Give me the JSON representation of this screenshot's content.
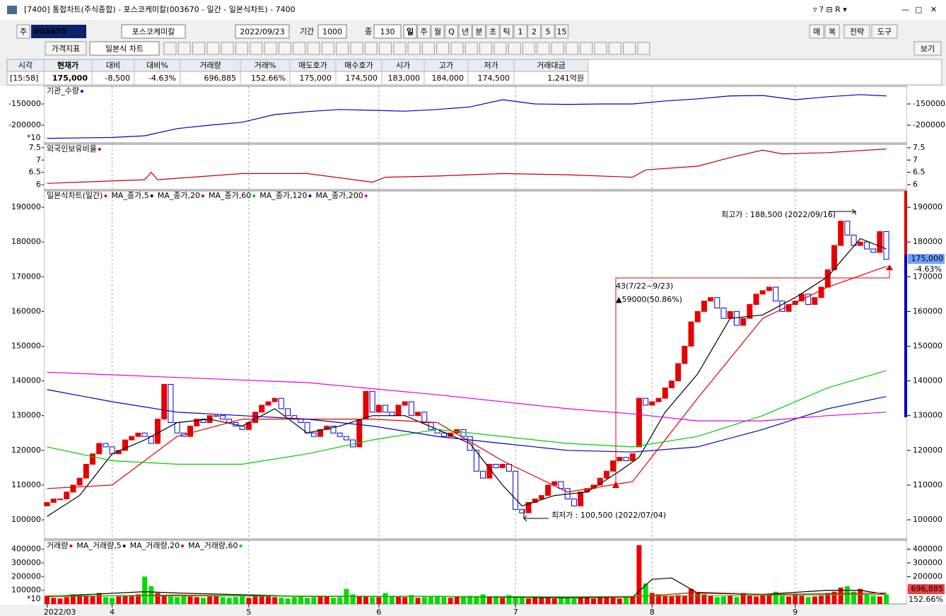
{
  "window": {
    "title": "[7400] 통합차트(주식종합) - 포스코케미칼(003670 - 일간 - 일본식차트) - 7400"
  },
  "toolbar": {
    "market": "주",
    "code": "003670",
    "name": "포스코케미칼",
    "date": "2022/09/23",
    "period_label": "기간",
    "period": "1000",
    "count_label": "종",
    "count": "130",
    "intervals": [
      "일",
      "주",
      "월",
      "Q",
      "년",
      "분",
      "초",
      "틱",
      "1",
      "2",
      "5",
      "15"
    ],
    "right_buttons": [
      "매",
      "복",
      "전략",
      "도구"
    ],
    "indicator": "가격지표",
    "chart_style": "일본식 차트",
    "view": "보기"
  },
  "quote": {
    "headers": [
      "시각",
      "현재가",
      "대비",
      "대비%",
      "거래량",
      "거래%",
      "매도호가",
      "매수호가",
      "시가",
      "고가",
      "저가",
      "거래대금"
    ],
    "values": [
      "[15:58]",
      "175,000",
      "-8,500",
      "-4.63%",
      "696,885",
      "152.66%",
      "175,000",
      "174,500",
      "183,000",
      "184,000",
      "174,500",
      "1,241억원"
    ]
  },
  "chart_data": [
    {
      "type": "line",
      "xlim": [
        -0.5,
        132.2
      ],
      "ylim": [
        -241700,
        -108300
      ],
      "yticks": [
        -150000,
        -200000
      ],
      "unit_label": "*10",
      "series": [
        {
          "name": "기관_수량",
          "color": "#0000c0",
          "x": [
            0,
            10,
            15,
            20,
            25,
            30,
            35,
            40,
            45,
            50,
            55,
            60,
            65,
            70,
            75,
            80,
            85,
            90,
            95,
            100,
            105,
            110,
            115,
            120,
            125,
            129
          ],
          "values": [
            -231000,
            -229000,
            -225000,
            -208000,
            -200000,
            -193000,
            -175000,
            -168000,
            -163000,
            -165000,
            -167000,
            -163000,
            -157000,
            -140000,
            -150000,
            -151000,
            -150000,
            -150000,
            -143000,
            -138000,
            -131000,
            -130000,
            -140000,
            -133000,
            -128000,
            -131000
          ]
        }
      ]
    },
    {
      "type": "line",
      "xlim": [
        -0.5,
        132.2
      ],
      "ylim": [
        5.8,
        7.64
      ],
      "yticks": [
        7.5,
        7,
        6.5,
        6
      ],
      "series": [
        {
          "name": "외국인보유비율",
          "color": "#c00000",
          "x": [
            0,
            15,
            16,
            17,
            30,
            40,
            50,
            52,
            60,
            70,
            80,
            90,
            92,
            100,
            105,
            110,
            113,
            120,
            129
          ],
          "values": [
            6.05,
            6.2,
            6.5,
            6.2,
            6.45,
            6.45,
            6.1,
            6.3,
            6.35,
            6.45,
            6.4,
            6.3,
            6.6,
            6.75,
            7.1,
            7.4,
            7.25,
            7.3,
            7.45
          ]
        }
      ]
    },
    {
      "type": "candlestick",
      "name": "일본식차트(일간)",
      "xlim": [
        -0.5,
        132.2
      ],
      "ylim": [
        94500,
        194700
      ],
      "yticks": [
        100000,
        110000,
        120000,
        130000,
        140000,
        150000,
        160000,
        170000,
        180000,
        190000
      ],
      "xticks": [
        {
          "value": 0,
          "label": "2022/03"
        },
        {
          "value": 10,
          "label": "4"
        },
        {
          "value": 31,
          "label": "5"
        },
        {
          "value": 51,
          "label": "6"
        },
        {
          "value": 72,
          "label": "7"
        },
        {
          "value": 93,
          "label": "8"
        },
        {
          "value": 115,
          "label": "9"
        }
      ],
      "up_color": "#e60000",
      "down_color": "#0000e0",
      "open": [
        104000,
        105000,
        106000,
        106000,
        108000,
        110000,
        112000,
        116000,
        119000,
        122000,
        121000,
        119000,
        120000,
        123000,
        124000,
        125000,
        124000,
        122000,
        129000,
        139000,
        128000,
        125000,
        124000,
        127000,
        129000,
        128000,
        130000,
        130000,
        129000,
        128000,
        127000,
        126000,
        128000,
        131000,
        133000,
        134000,
        135000,
        132000,
        130000,
        129000,
        128000,
        125000,
        124000,
        126000,
        127000,
        125000,
        124000,
        123000,
        121000,
        129000,
        137000,
        131000,
        133000,
        131000,
        130000,
        133000,
        134000,
        130000,
        131000,
        128000,
        126000,
        125000,
        124000,
        125000,
        126000,
        124000,
        120000,
        114000,
        112000,
        116000,
        115000,
        116000,
        114000,
        103000,
        102000,
        105000,
        106000,
        107000,
        110000,
        111000,
        109000,
        106000,
        104000,
        108000,
        109000,
        110000,
        112000,
        114000,
        117000,
        118000,
        117000,
        121000,
        135000,
        133000,
        134000,
        135000,
        138000,
        140000,
        145000,
        150000,
        157000,
        160000,
        163000,
        164000,
        161000,
        158000,
        160000,
        156000,
        158000,
        162000,
        165000,
        166000,
        167000,
        163000,
        160000,
        162000,
        163000,
        165000,
        162000,
        164000,
        167000,
        172000,
        179000,
        186000,
        182000,
        179000,
        180000,
        178000,
        177000,
        183000
      ],
      "close": [
        105000,
        106000,
        106000,
        108000,
        110000,
        112000,
        116000,
        119000,
        122000,
        121000,
        119000,
        120000,
        123000,
        124000,
        125000,
        124000,
        122000,
        129000,
        139000,
        128000,
        125000,
        124000,
        127000,
        129000,
        128000,
        130000,
        130000,
        129000,
        128000,
        127000,
        126000,
        128000,
        131000,
        133000,
        134000,
        135000,
        132000,
        130000,
        129000,
        128000,
        125000,
        124000,
        126000,
        127000,
        125000,
        124000,
        123000,
        121000,
        129000,
        137000,
        131000,
        133000,
        131000,
        130000,
        133000,
        134000,
        130000,
        131000,
        128000,
        126000,
        125000,
        124000,
        125000,
        126000,
        124000,
        120000,
        114000,
        112000,
        116000,
        115000,
        116000,
        114000,
        103000,
        102000,
        105000,
        106000,
        107000,
        110000,
        111000,
        109000,
        106000,
        104000,
        108000,
        109000,
        110000,
        112000,
        114000,
        117000,
        118000,
        117000,
        119000,
        135000,
        133000,
        134000,
        135000,
        138000,
        140000,
        145000,
        150000,
        157000,
        160000,
        163000,
        164000,
        161000,
        158000,
        160000,
        156000,
        158000,
        162000,
        165000,
        166000,
        167000,
        163000,
        160000,
        162000,
        163000,
        165000,
        162000,
        164000,
        167000,
        172000,
        179000,
        186000,
        182000,
        179000,
        180000,
        178000,
        177000,
        183000,
        175000
      ],
      "series": [
        {
          "name": "MA_종가,5",
          "color": "#000000",
          "x": [
            0,
            5,
            10,
            15,
            20,
            25,
            30,
            35,
            40,
            45,
            50,
            55,
            60,
            65,
            70,
            73,
            78,
            83,
            88,
            91,
            95,
            100,
            105,
            110,
            115,
            120,
            125,
            129
          ],
          "values": [
            101000,
            107000,
            119000,
            123000,
            128000,
            129000,
            127000,
            132000,
            125000,
            127000,
            130000,
            130000,
            126000,
            122000,
            110000,
            104000,
            107000,
            108000,
            114000,
            118000,
            131000,
            142000,
            158000,
            159000,
            164000,
            170000,
            181000,
            178000
          ]
        },
        {
          "name": "MA_종가,20",
          "color": "#e00000",
          "x": [
            0,
            10,
            20,
            30,
            40,
            50,
            60,
            70,
            80,
            90,
            100,
            110,
            120,
            129
          ],
          "values": [
            109000,
            110000,
            124000,
            129000,
            129000,
            129000,
            128000,
            117000,
            108000,
            111000,
            135000,
            158000,
            167000,
            173000
          ]
        },
        {
          "name": "MA_종가,60",
          "color": "#00cc00",
          "x": [
            0,
            10,
            20,
            30,
            40,
            50,
            60,
            70,
            80,
            90,
            100,
            110,
            120,
            129
          ],
          "values": [
            121000,
            117000,
            116000,
            116000,
            119000,
            123000,
            126000,
            124000,
            122000,
            121000,
            124000,
            130000,
            138000,
            143000
          ]
        },
        {
          "name": "MA_종가,120",
          "color": "#0000c0",
          "x": [
            0,
            10,
            20,
            30,
            40,
            50,
            60,
            70,
            80,
            90,
            100,
            110,
            120,
            129
          ],
          "values": [
            137500,
            134000,
            131000,
            130000,
            129000,
            127000,
            124000,
            122000,
            120000,
            119500,
            121000,
            126000,
            132000,
            135500
          ]
        },
        {
          "name": "MA_종가,200",
          "color": "#e000e0",
          "x": [
            0,
            20,
            40,
            60,
            80,
            90,
            100,
            110,
            120,
            129
          ],
          "values": [
            142500,
            141000,
            139500,
            136000,
            132000,
            130500,
            128500,
            128500,
            130000,
            131000
          ]
        }
      ],
      "annotations": {
        "high": "최고가 : 188,500 (2022/09/16)",
        "low": "최저가 : 100,500 (2022/07/04)",
        "range": "43(7/22~9/23)",
        "change": "▲59000(50.86%)",
        "last": "175,000",
        "last_pct": "-4.63%"
      }
    },
    {
      "type": "bar",
      "name": "거래량",
      "xlim": [
        -0.5,
        132.2
      ],
      "ylim": [
        0,
        465000
      ],
      "yticks": [
        100000,
        200000,
        300000,
        400000
      ],
      "unit_label": "*10",
      "up_color": "#f00000",
      "down_color": "#00dd00",
      "values": [
        60000,
        45000,
        40000,
        50000,
        70000,
        65000,
        60000,
        55000,
        80000,
        50000,
        45000,
        55000,
        60000,
        65000,
        70000,
        200000,
        130000,
        80000,
        60000,
        55000,
        50000,
        60000,
        55000,
        50000,
        45000,
        55000,
        60000,
        50000,
        45000,
        50000,
        55000,
        45000,
        60000,
        65000,
        55000,
        50000,
        45000,
        40000,
        50000,
        55000,
        45000,
        50000,
        60000,
        55000,
        45000,
        50000,
        110000,
        70000,
        60000,
        55000,
        50000,
        50000,
        80000,
        60000,
        55000,
        50000,
        65000,
        45000,
        50000,
        55000,
        60000,
        50000,
        45000,
        55000,
        50000,
        60000,
        55000,
        70000,
        55000,
        50000,
        45000,
        65000,
        50000,
        45000,
        40000,
        50000,
        55000,
        45000,
        40000,
        50000,
        45000,
        40000,
        50000,
        45000,
        40000,
        55000,
        50000,
        45000,
        40000,
        50000,
        55000,
        430000,
        150000,
        80000,
        70000,
        60000,
        55000,
        65000,
        60000,
        110000,
        80000,
        70000,
        60000,
        50000,
        55000,
        60000,
        50000,
        80000,
        60000,
        55000,
        65000,
        70000,
        90000,
        60000,
        55000,
        70000,
        60000,
        50000,
        55000,
        60000,
        80000,
        90000,
        120000,
        130000,
        90000,
        110000,
        70000,
        60000,
        55000,
        70000
      ],
      "series": [
        {
          "name": "MA_거래량,5",
          "color": "#000000",
          "x": [
            0,
            15,
            20,
            40,
            60,
            80,
            90,
            93,
            96,
            100,
            110,
            120,
            125,
            129
          ],
          "values": [
            55000,
            90000,
            80000,
            55000,
            55000,
            45000,
            50000,
            180000,
            190000,
            80000,
            70000,
            100000,
            100000,
            70000
          ]
        },
        {
          "name": "MA_거래량,20",
          "color": "#e00000",
          "x": [
            0,
            20,
            40,
            60,
            80,
            90,
            100,
            110,
            120,
            129
          ],
          "values": [
            55000,
            65000,
            55000,
            55000,
            50000,
            50000,
            85000,
            70000,
            75000,
            80000
          ]
        },
        {
          "name": "MA_거래량,60",
          "color": "#00cc00",
          "x": [
            0,
            40,
            80,
            100,
            129
          ],
          "values": [
            60000,
            58000,
            52000,
            60000,
            70000
          ]
        }
      ],
      "annotations": {
        "last": "696,885",
        "last_pct": "152.66%"
      }
    }
  ]
}
